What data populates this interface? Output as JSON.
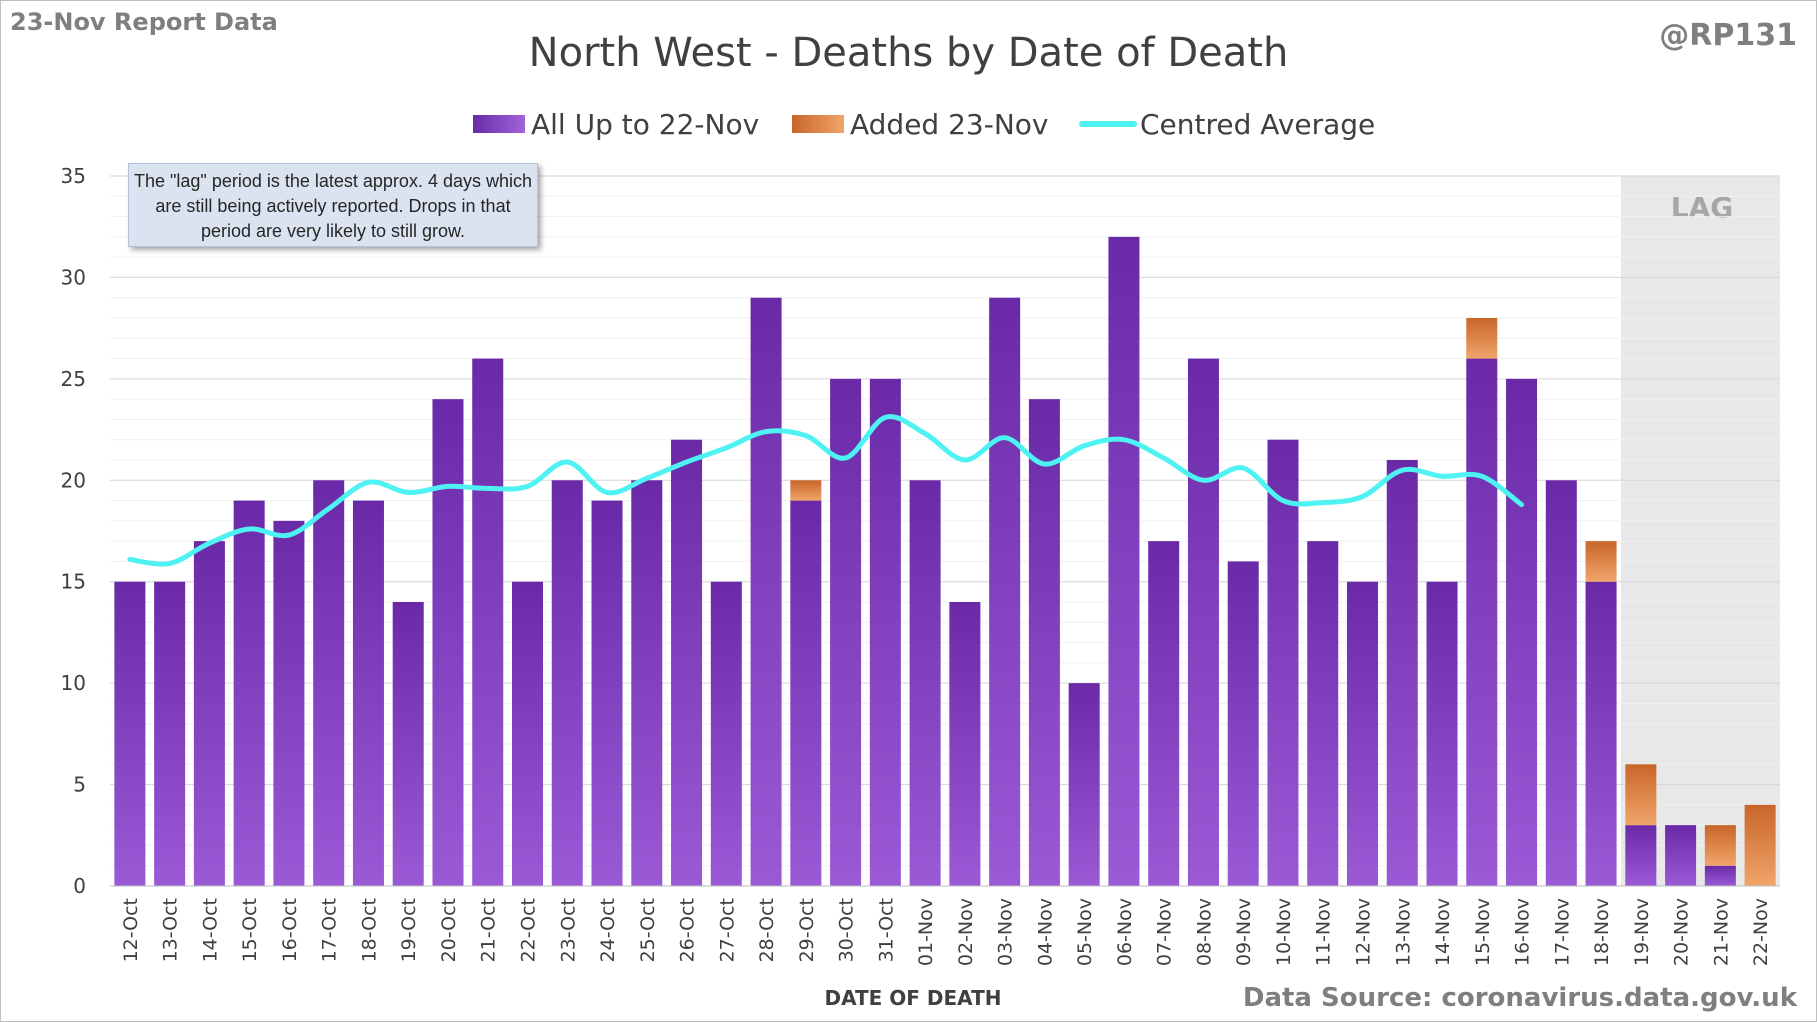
{
  "header": {
    "report_label": "23-Nov Report Data",
    "author": "@RP131",
    "source": "Data Source: coronavirus.data.gov.uk"
  },
  "colors": {
    "base": "#7b2fc0",
    "added": "#e07b39",
    "average": "#4ff2f2",
    "lag_shade": "#e8e8e8",
    "grid": "#e3e3e3"
  },
  "annotation": {
    "note": "The \"lag\" period is the latest approx. 4 days which are still being actively reported. Drops in that period are very likely to still grow.",
    "lag_label": "LAG"
  },
  "chart_data": {
    "type": "bar",
    "stacked": true,
    "title": "North West - Deaths by Date of Death",
    "xlabel": "DATE OF DEATH",
    "ylabel": "",
    "ylim": [
      0,
      35
    ],
    "yticks": [
      0,
      5,
      10,
      15,
      20,
      25,
      30,
      35
    ],
    "grid": true,
    "legend_position": "top",
    "categories": [
      "12-Oct",
      "13-Oct",
      "14-Oct",
      "15-Oct",
      "16-Oct",
      "17-Oct",
      "18-Oct",
      "19-Oct",
      "20-Oct",
      "21-Oct",
      "22-Oct",
      "23-Oct",
      "24-Oct",
      "25-Oct",
      "26-Oct",
      "27-Oct",
      "28-Oct",
      "29-Oct",
      "30-Oct",
      "31-Oct",
      "01-Nov",
      "02-Nov",
      "03-Nov",
      "04-Nov",
      "05-Nov",
      "06-Nov",
      "07-Nov",
      "08-Nov",
      "09-Nov",
      "10-Nov",
      "11-Nov",
      "12-Nov",
      "13-Nov",
      "14-Nov",
      "15-Nov",
      "16-Nov",
      "17-Nov",
      "18-Nov",
      "19-Nov",
      "20-Nov",
      "21-Nov",
      "22-Nov"
    ],
    "series": [
      {
        "name": "All Up to 22-Nov",
        "kind": "bar",
        "values": [
          15,
          15,
          17,
          19,
          18,
          20,
          19,
          14,
          24,
          26,
          15,
          20,
          19,
          20,
          22,
          15,
          29,
          19,
          25,
          25,
          20,
          14,
          29,
          24,
          10,
          32,
          17,
          26,
          16,
          22,
          17,
          15,
          21,
          15,
          26,
          25,
          20,
          15,
          3,
          3,
          1,
          0
        ]
      },
      {
        "name": "Added 23-Nov",
        "kind": "bar",
        "values": [
          0,
          0,
          0,
          0,
          0,
          0,
          0,
          0,
          0,
          0,
          0,
          0,
          0,
          0,
          0,
          0,
          0,
          1,
          0,
          0,
          0,
          0,
          0,
          0,
          0,
          0,
          0,
          0,
          0,
          0,
          0,
          0,
          0,
          0,
          2,
          0,
          0,
          2,
          3,
          0,
          2,
          4
        ]
      },
      {
        "name": "Centred Average",
        "kind": "line",
        "values": [
          16.1,
          15.9,
          16.9,
          17.6,
          17.3,
          18.6,
          19.9,
          19.4,
          19.7,
          19.6,
          19.7,
          20.9,
          19.4,
          20.1,
          20.9,
          21.6,
          22.4,
          22.2,
          21.1,
          23.1,
          22.3,
          21.0,
          22.1,
          20.8,
          21.7,
          22.0,
          21.1,
          20.0,
          20.6,
          19.0,
          18.9,
          19.2,
          20.5,
          20.2,
          20.2,
          18.8,
          null,
          null,
          null,
          null,
          null,
          null
        ]
      }
    ],
    "lag_categories": [
      "19-Nov",
      "20-Nov",
      "21-Nov",
      "22-Nov"
    ]
  }
}
